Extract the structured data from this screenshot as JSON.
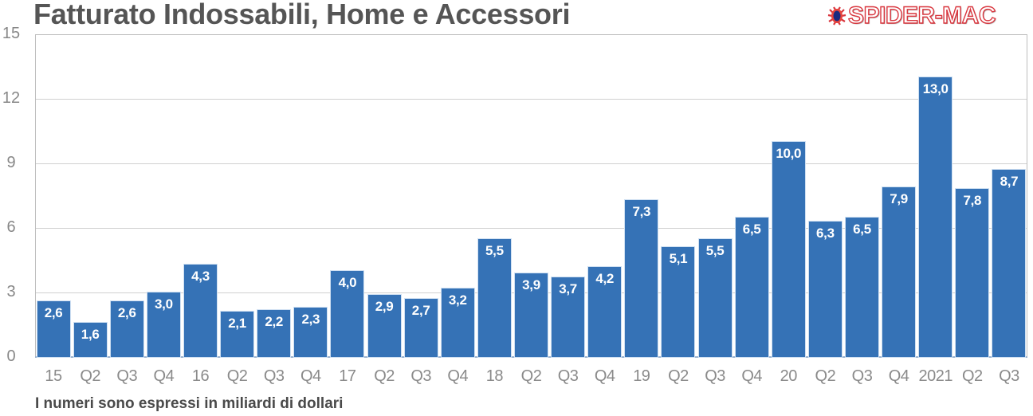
{
  "header": {
    "title": "Fatturato Indossabili, Home e Accessori",
    "logo_text": "SPIDER-MAC"
  },
  "footer": {
    "note": "I numeri sono espressi in miliardi di dollari"
  },
  "colors": {
    "bar": "#3572b6",
    "title": "#555555",
    "logo": "#d9363e",
    "grid": "#d0d0d0",
    "tick": "#888888"
  },
  "y_ticks": [
    "0",
    "3",
    "6",
    "9",
    "12",
    "15"
  ],
  "chart_data": {
    "type": "bar",
    "title": "Fatturato Indossabili, Home e Accessori",
    "subtitle": "I numeri sono espressi in miliardi di dollari",
    "xlabel": "",
    "ylabel": "",
    "ylim": [
      0,
      15
    ],
    "yticks": [
      0,
      3,
      6,
      9,
      12,
      15
    ],
    "grid": true,
    "legend": null,
    "categories": [
      "15",
      "Q2",
      "Q3",
      "Q4",
      "16",
      "Q2",
      "Q3",
      "Q4",
      "17",
      "Q2",
      "Q3",
      "Q4",
      "18",
      "Q2",
      "Q3",
      "Q4",
      "19",
      "Q2",
      "Q3",
      "Q4",
      "20",
      "Q2",
      "Q3",
      "Q4",
      "2021",
      "Q2",
      "Q3"
    ],
    "values": [
      2.6,
      1.6,
      2.6,
      3.0,
      4.3,
      2.1,
      2.2,
      2.3,
      4.0,
      2.9,
      2.7,
      3.2,
      5.5,
      3.9,
      3.7,
      4.2,
      7.3,
      5.1,
      5.5,
      6.5,
      10.0,
      6.3,
      6.5,
      7.9,
      13.0,
      7.8,
      8.7
    ],
    "value_labels": [
      "2,6",
      "1,6",
      "2,6",
      "3,0",
      "4,3",
      "2,1",
      "2,2",
      "2,3",
      "4,0",
      "2,9",
      "2,7",
      "3,2",
      "5,5",
      "3,9",
      "3,7",
      "4,2",
      "7,3",
      "5,1",
      "5,5",
      "6,5",
      "10,0",
      "6,3",
      "6,5",
      "7,9",
      "13,0",
      "7,8",
      "8,7"
    ]
  }
}
